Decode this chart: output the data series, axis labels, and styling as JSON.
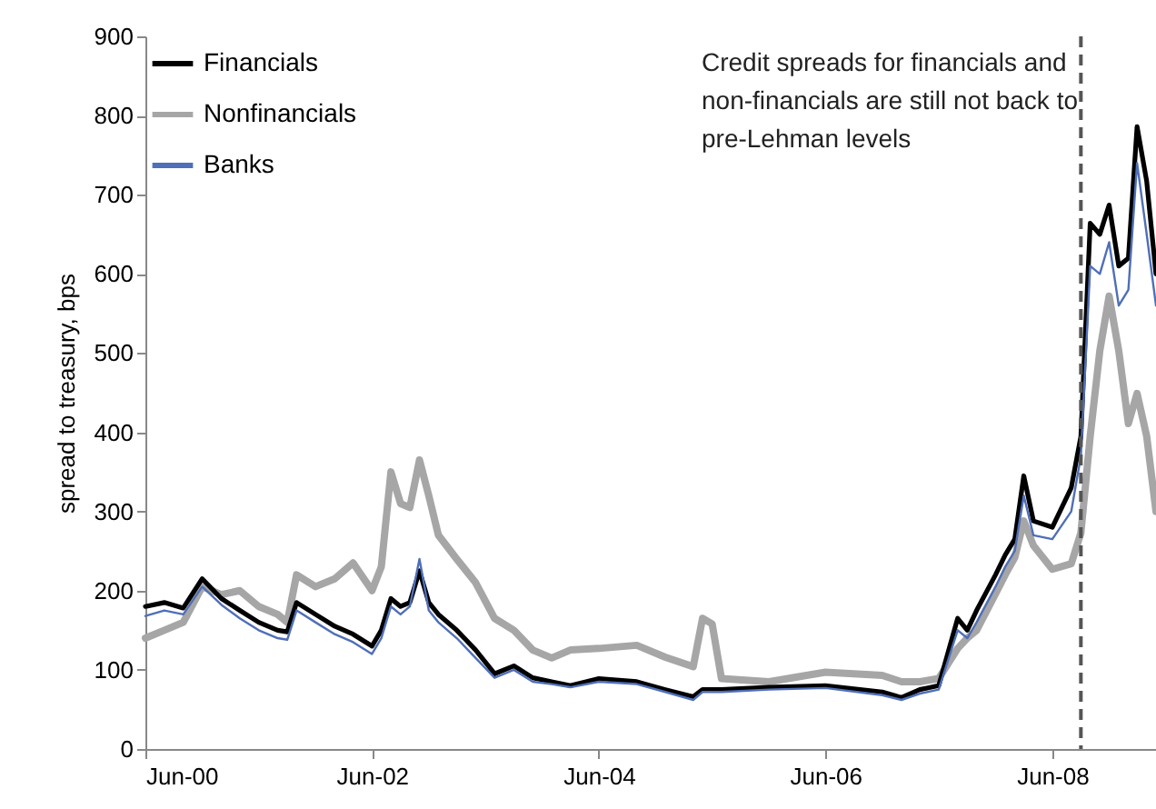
{
  "chart_data": {
    "type": "line",
    "ylabel": "spread to treasury, bps",
    "x": [
      "2000-06",
      "2000-08",
      "2000-10",
      "2000-12",
      "2001-02",
      "2001-04",
      "2001-06",
      "2001-08",
      "2001-09",
      "2001-10",
      "2001-12",
      "2002-02",
      "2002-04",
      "2002-06",
      "2002-07",
      "2002-08",
      "2002-09",
      "2002-10",
      "2002-11",
      "2002-12",
      "2003-01",
      "2003-03",
      "2003-05",
      "2003-07",
      "2003-09",
      "2003-11",
      "2004-01",
      "2004-03",
      "2004-06",
      "2004-10",
      "2005-01",
      "2005-04",
      "2005-05",
      "2005-06",
      "2005-07",
      "2005-12",
      "2006-06",
      "2006-12",
      "2007-02",
      "2007-04",
      "2007-06",
      "2007-08",
      "2007-09",
      "2007-10",
      "2007-12",
      "2008-01",
      "2008-02",
      "2008-03",
      "2008-04",
      "2008-06",
      "2008-08",
      "2008-09",
      "2008-10",
      "2008-11",
      "2008-12",
      "2009-01",
      "2009-02",
      "2009-03",
      "2009-04",
      "2009-05"
    ],
    "series": [
      {
        "name": "Financials",
        "color": "#000000",
        "values": [
          180,
          185,
          178,
          215,
          190,
          175,
          160,
          150,
          148,
          185,
          170,
          155,
          145,
          130,
          150,
          190,
          180,
          185,
          225,
          185,
          170,
          150,
          125,
          95,
          105,
          90,
          85,
          80,
          89,
          85,
          75,
          66,
          75,
          75,
          75,
          78,
          80,
          72,
          65,
          75,
          80,
          165,
          150,
          175,
          220,
          245,
          265,
          345,
          288,
          280,
          330,
          395,
          664,
          650,
          687,
          610,
          620,
          786,
          717,
          600
        ]
      },
      {
        "name": "Nonfinancials",
        "color": "#a6a6a6",
        "values": [
          140,
          150,
          160,
          205,
          195,
          200,
          180,
          170,
          160,
          220,
          205,
          215,
          235,
          200,
          230,
          350,
          310,
          305,
          365,
          320,
          270,
          240,
          210,
          165,
          150,
          125,
          115,
          125,
          127,
          131,
          116,
          104,
          165,
          158,
          89,
          85,
          97,
          93,
          85,
          85,
          89,
          127,
          140,
          150,
          196,
          220,
          242,
          288,
          257,
          227,
          234,
          273,
          395,
          503,
          572,
          503,
          411,
          449,
          395,
          300
        ]
      },
      {
        "name": "Banks",
        "color": "#4f6fb8",
        "values": [
          168,
          175,
          170,
          205,
          182,
          165,
          150,
          140,
          138,
          175,
          160,
          145,
          135,
          120,
          140,
          180,
          170,
          180,
          240,
          175,
          160,
          140,
          115,
          90,
          100,
          85,
          82,
          78,
          85,
          82,
          72,
          62,
          72,
          72,
          72,
          75,
          77,
          68,
          62,
          70,
          75,
          150,
          140,
          160,
          205,
          230,
          250,
          320,
          270,
          265,
          300,
          370,
          610,
          600,
          640,
          560,
          580,
          740,
          650,
          560
        ]
      }
    ],
    "xlim": [
      "2000-06",
      "2009-05"
    ],
    "xticks": [
      {
        "value": "2000-06",
        "label": "Jun-00"
      },
      {
        "value": "2002-06",
        "label": "Jun-02"
      },
      {
        "value": "2004-06",
        "label": "Jun-04"
      },
      {
        "value": "2006-06",
        "label": "Jun-06"
      },
      {
        "value": "2008-06",
        "label": "Jun-08"
      }
    ],
    "ylim": [
      0,
      900
    ],
    "yticks": [
      0,
      100,
      200,
      300,
      400,
      500,
      600,
      700,
      800,
      900
    ],
    "ref_lines": [
      {
        "axis": "x",
        "value": "2008-09",
        "color": "#555555",
        "line_style": "dashed"
      }
    ],
    "annotations": [
      "Credit spreads for financials and non-financials are still not back to pre-Lehman levels"
    ],
    "legend": "top left",
    "grid": false,
    "line_style": "solid",
    "marker": "none"
  }
}
